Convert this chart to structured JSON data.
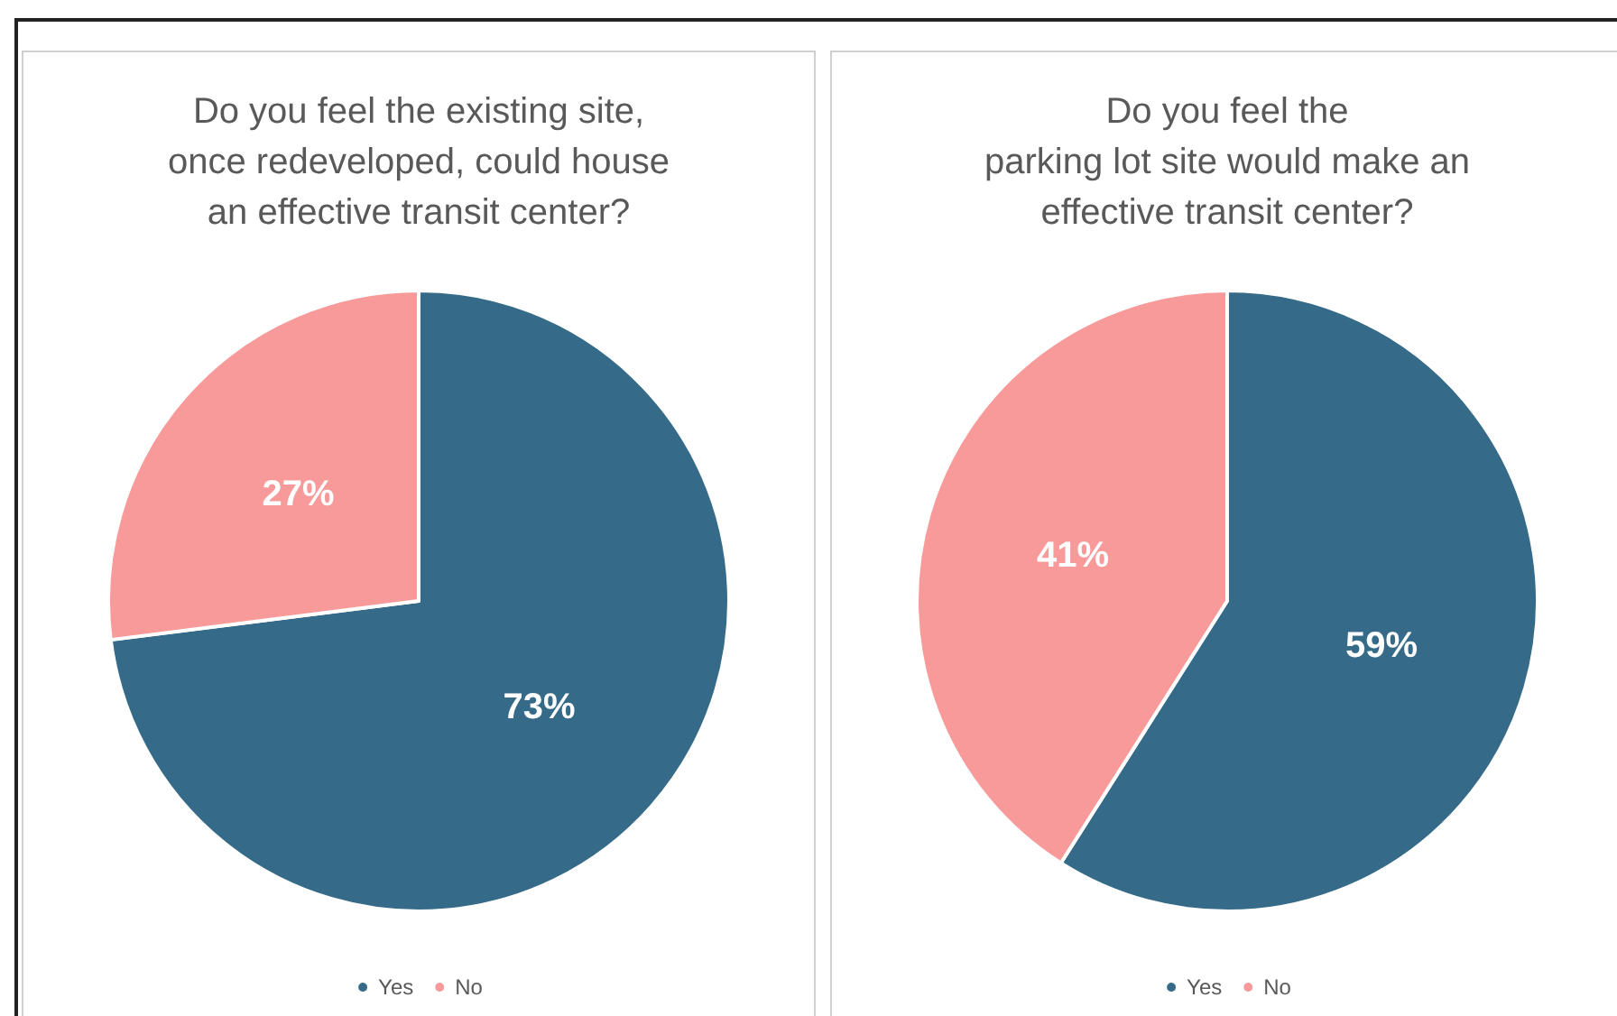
{
  "chart_data": [
    {
      "type": "pie",
      "title": "Do you feel the existing site,\nonce redeveloped, could house\nan effective transit center?",
      "categories": [
        "Yes",
        "No"
      ],
      "values": [
        73,
        27
      ],
      "colors": [
        "#356a88",
        "#f89a9a"
      ],
      "value_labels": [
        "73%",
        "27%"
      ],
      "legend": "bottom"
    },
    {
      "type": "pie",
      "title": "Do you feel the\nparking lot site would make an\neffective transit center?",
      "categories": [
        "Yes",
        "No"
      ],
      "values": [
        59,
        41
      ],
      "colors": [
        "#356a88",
        "#f89a9a"
      ],
      "value_labels": [
        "59%",
        "41%"
      ],
      "legend": "bottom"
    }
  ]
}
